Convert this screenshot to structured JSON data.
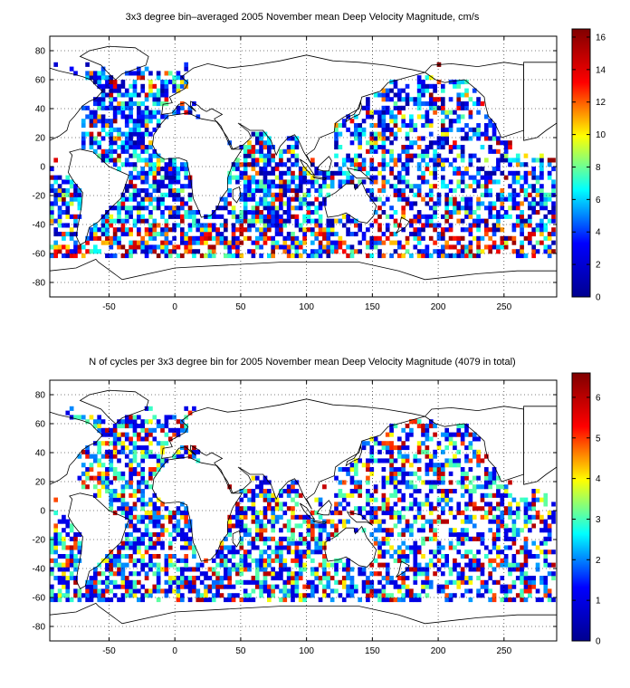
{
  "chart_data": [
    {
      "type": "heatmap",
      "title": "3x3 degree bin–averaged 2005 November mean Deep Velocity Magnitude, cm/s",
      "xlabel": "",
      "ylabel": "",
      "xlim": [
        -95,
        290
      ],
      "ylim": [
        -90,
        90
      ],
      "xticks": [
        -50,
        0,
        50,
        100,
        150,
        200,
        250
      ],
      "yticks": [
        -80,
        -60,
        -40,
        -20,
        0,
        20,
        40,
        60,
        80
      ],
      "grid": true,
      "bin_size_deg": 3,
      "colorbar": {
        "min": 0,
        "max": 16.5,
        "ticks": [
          0,
          2,
          4,
          6,
          8,
          10,
          12,
          14,
          16
        ],
        "colormap": "jet"
      },
      "colormap_stops": [
        "#00008f",
        "#0000ff",
        "#00ffff",
        "#ffff00",
        "#ff0000",
        "#800000"
      ],
      "value_distribution": {
        "low_blue": 0.55,
        "cyan_green": 0.28,
        "yellow_orange": 0.09,
        "red": 0.08
      },
      "seed": 7
    },
    {
      "type": "heatmap",
      "title": "N of cycles per 3x3 degree bin for 2005 November mean Deep Velocity Magnitude (4079 in total)",
      "xlabel": "",
      "ylabel": "",
      "total_cycles": 4079,
      "xlim": [
        -95,
        290
      ],
      "ylim": [
        -90,
        90
      ],
      "xticks": [
        -50,
        0,
        50,
        100,
        150,
        200,
        250
      ],
      "yticks": [
        -80,
        -60,
        -40,
        -20,
        0,
        20,
        40,
        60,
        80
      ],
      "grid": true,
      "bin_size_deg": 3,
      "colorbar": {
        "min": 0,
        "max": 6.6,
        "ticks": [
          0,
          1,
          2,
          3,
          4,
          5,
          6
        ],
        "colormap": "jet"
      },
      "colormap_stops": [
        "#00008f",
        "#0000ff",
        "#00ffff",
        "#ffff00",
        "#ff0000",
        "#800000"
      ],
      "value_distribution": {
        "one": 0.35,
        "two_three": 0.4,
        "four_five": 0.15,
        "six_plus": 0.1
      },
      "seed": 13
    }
  ]
}
